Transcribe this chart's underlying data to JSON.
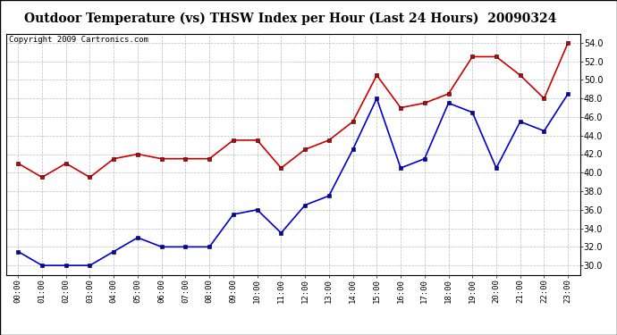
{
  "title": "Outdoor Temperature (vs) THSW Index per Hour (Last 24 Hours)  20090324",
  "copyright": "Copyright 2009 Cartronics.com",
  "hours": [
    "00:00",
    "01:00",
    "02:00",
    "03:00",
    "04:00",
    "05:00",
    "06:00",
    "07:00",
    "08:00",
    "09:00",
    "10:00",
    "11:00",
    "12:00",
    "13:00",
    "14:00",
    "15:00",
    "16:00",
    "17:00",
    "18:00",
    "19:00",
    "20:00",
    "21:00",
    "22:00",
    "23:00"
  ],
  "temp_blue": [
    31.5,
    30.0,
    30.0,
    30.0,
    31.5,
    33.0,
    32.0,
    32.0,
    32.0,
    35.5,
    36.0,
    33.5,
    36.5,
    37.5,
    42.5,
    48.0,
    40.5,
    41.5,
    47.5,
    46.5,
    40.5,
    45.5,
    44.5,
    48.5
  ],
  "thsw_red": [
    41.0,
    39.5,
    41.0,
    39.5,
    41.5,
    42.0,
    41.5,
    41.5,
    41.5,
    43.5,
    43.5,
    40.5,
    42.5,
    43.5,
    45.5,
    50.5,
    47.0,
    47.5,
    48.5,
    52.5,
    52.5,
    50.5,
    48.0,
    54.0
  ],
  "ylim": [
    29.0,
    55.0
  ],
  "yticks": [
    30.0,
    32.0,
    34.0,
    36.0,
    38.0,
    40.0,
    42.0,
    44.0,
    46.0,
    48.0,
    50.0,
    52.0,
    54.0
  ],
  "blue_color": "#0000cc",
  "red_color": "#cc0000",
  "bg_color": "#ffffff",
  "grid_color": "#bbbbbb",
  "title_fontsize": 10,
  "copyright_fontsize": 6.5
}
